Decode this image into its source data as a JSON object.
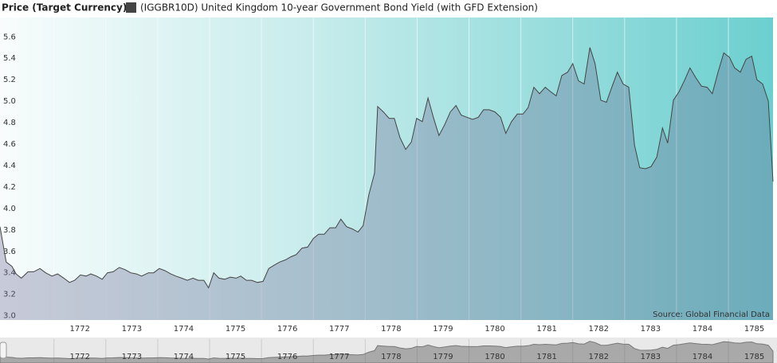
{
  "chart_data": {
    "type": "area",
    "legend_title": "Price (Target Currency)",
    "source": "Source: Global Financial Data",
    "xlim": [
      1770.96,
      1785.86
    ],
    "ylim": [
      2.96,
      5.78
    ],
    "xticks": [
      1772,
      1773,
      1774,
      1775,
      1776,
      1777,
      1778,
      1779,
      1780,
      1781,
      1782,
      1783,
      1784,
      1785
    ],
    "yticks": [
      {
        "value": 3,
        "label": "3.0"
      },
      3.2,
      3.4,
      3.6,
      3.8,
      {
        "value": 4,
        "label": "4.0"
      },
      4.2,
      4.4,
      4.6,
      4.8,
      {
        "value": 5,
        "label": "5.0"
      },
      5.2,
      5.4,
      5.6
    ],
    "grid": true,
    "series": [
      {
        "name": "(IGGBR10D) United Kingdom 10-year Government Bond Yield (with GFD Extension)",
        "color": "#444444",
        "x": [
          1770.96,
          1771.08,
          1771.19,
          1771.27,
          1771.37,
          1771.5,
          1771.61,
          1771.73,
          1771.84,
          1771.96,
          1772.07,
          1772.19,
          1772.3,
          1772.4,
          1772.51,
          1772.62,
          1772.71,
          1772.82,
          1772.93,
          1773.03,
          1773.14,
          1773.26,
          1773.37,
          1773.48,
          1773.59,
          1773.69,
          1773.82,
          1773.92,
          1774.03,
          1774.14,
          1774.25,
          1774.35,
          1774.46,
          1774.57,
          1774.68,
          1774.78,
          1774.89,
          1774.98,
          1775.08,
          1775.18,
          1775.29,
          1775.4,
          1775.51,
          1775.6,
          1775.71,
          1775.81,
          1775.92,
          1776.03,
          1776.14,
          1776.24,
          1776.35,
          1776.46,
          1776.57,
          1776.67,
          1776.78,
          1776.89,
          1777.0,
          1777.1,
          1777.21,
          1777.32,
          1777.43,
          1777.53,
          1777.64,
          1777.75,
          1777.86,
          1777.96,
          1778.07,
          1778.18,
          1778.24,
          1778.35,
          1778.46,
          1778.56,
          1778.67,
          1778.78,
          1778.89,
          1778.99,
          1779.1,
          1779.21,
          1779.32,
          1779.42,
          1779.53,
          1779.64,
          1779.75,
          1779.85,
          1779.96,
          1780.07,
          1780.18,
          1780.28,
          1780.39,
          1780.5,
          1780.61,
          1780.71,
          1780.82,
          1780.93,
          1781.04,
          1781.14,
          1781.25,
          1781.36,
          1781.47,
          1781.57,
          1781.68,
          1781.79,
          1781.9,
          1782.0,
          1782.11,
          1782.22,
          1782.33,
          1782.43,
          1782.54,
          1782.65,
          1782.76,
          1782.86,
          1782.97,
          1783.08,
          1783.19,
          1783.29,
          1783.4,
          1783.51,
          1783.62,
          1783.73,
          1783.83,
          1783.94,
          1784.05,
          1784.16,
          1784.26,
          1784.37,
          1784.48,
          1784.59,
          1784.69,
          1784.8,
          1784.91,
          1785.02,
          1785.12,
          1785.23,
          1785.34,
          1785.45,
          1785.55,
          1785.66,
          1785.77,
          1785.86
        ],
        "values": [
          3.83,
          3.5,
          3.46,
          3.39,
          3.35,
          3.41,
          3.41,
          3.44,
          3.4,
          3.37,
          3.39,
          3.35,
          3.31,
          3.33,
          3.38,
          3.37,
          3.39,
          3.37,
          3.34,
          3.4,
          3.41,
          3.45,
          3.43,
          3.4,
          3.39,
          3.37,
          3.4,
          3.4,
          3.44,
          3.42,
          3.39,
          3.37,
          3.35,
          3.33,
          3.35,
          3.33,
          3.33,
          3.26,
          3.4,
          3.35,
          3.34,
          3.36,
          3.35,
          3.37,
          3.33,
          3.33,
          3.31,
          3.32,
          3.44,
          3.47,
          3.5,
          3.52,
          3.55,
          3.57,
          3.63,
          3.64,
          3.72,
          3.76,
          3.76,
          3.82,
          3.82,
          3.9,
          3.83,
          3.81,
          3.78,
          3.84,
          4.13,
          4.33,
          4.95,
          4.9,
          4.84,
          4.84,
          4.66,
          4.55,
          4.62,
          4.84,
          4.81,
          5.03,
          4.84,
          4.68,
          4.78,
          4.9,
          4.96,
          4.87,
          4.85,
          4.83,
          4.85,
          4.92,
          4.92,
          4.9,
          4.85,
          4.7,
          4.81,
          4.88,
          4.88,
          4.94,
          5.13,
          5.07,
          5.13,
          5.09,
          5.05,
          5.24,
          5.27,
          5.35,
          5.19,
          5.16,
          5.5,
          5.35,
          5.01,
          4.99,
          5.14,
          5.27,
          5.16,
          5.13,
          4.59,
          4.38,
          4.37,
          4.39,
          4.48,
          4.75,
          4.61,
          5.01,
          5.09,
          5.2,
          5.31,
          5.22,
          5.14,
          5.13,
          5.07,
          5.27,
          5.45,
          5.41,
          5.31,
          5.27,
          5.39,
          5.42,
          5.2,
          5.16,
          5.0,
          4.25
        ]
      }
    ]
  }
}
